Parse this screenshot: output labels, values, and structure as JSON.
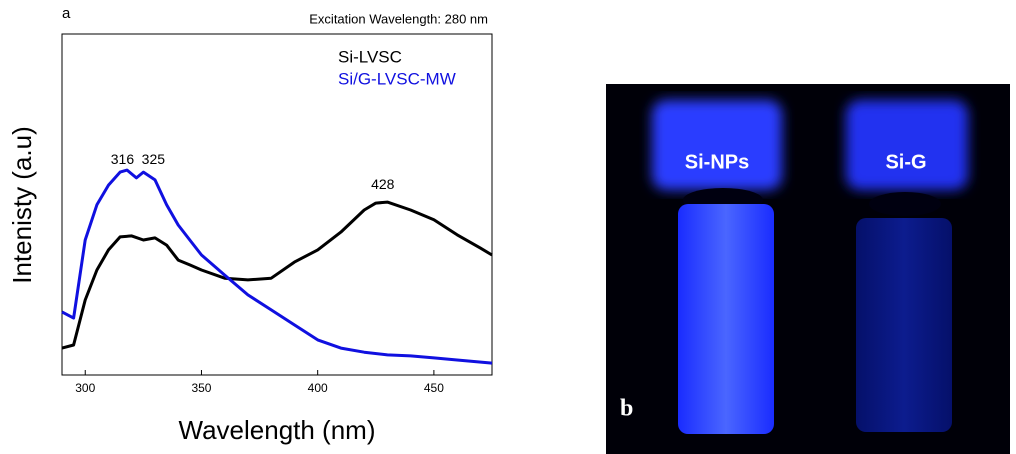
{
  "chart_data": {
    "type": "line",
    "panel_label": "a",
    "subtitle": "Excitation Wavelength: 280 nm",
    "x_label": "Wavelength (nm)",
    "y_label": "Intenisty (a.u)",
    "xlim": [
      290,
      475
    ],
    "xticks": [
      300,
      350,
      400,
      450
    ],
    "ylim": [
      0,
      100
    ],
    "series": [
      {
        "name": "Si-LVSC",
        "color": "#000000",
        "x": [
          290,
          295,
          300,
          305,
          310,
          315,
          320,
          325,
          330,
          335,
          340,
          345,
          350,
          360,
          370,
          380,
          390,
          400,
          410,
          420,
          425,
          430,
          440,
          450,
          460,
          470,
          475
        ],
        "values": [
          7.9,
          8.8,
          22,
          30.8,
          36.7,
          40.5,
          40.8,
          39.6,
          40.2,
          38.1,
          33.7,
          32.3,
          30.8,
          28.4,
          27.9,
          28.4,
          33.1,
          36.7,
          41.9,
          48.4,
          50.4,
          50.7,
          48.4,
          45.5,
          41.1,
          37.2,
          35.2
        ]
      },
      {
        "name": "Si/G-LVSC-MW",
        "color": "#1010e0",
        "x": [
          290,
          295,
          300,
          305,
          310,
          315,
          318,
          322,
          325,
          330,
          335,
          340,
          345,
          350,
          360,
          370,
          380,
          390,
          400,
          410,
          420,
          430,
          440,
          450,
          460,
          475
        ],
        "values": [
          18.5,
          16.7,
          39.6,
          49.9,
          55.7,
          59.5,
          60.1,
          57.8,
          59.5,
          57.2,
          49.9,
          44,
          39.6,
          35.2,
          29.3,
          23.5,
          19.1,
          14.7,
          10.3,
          7.9,
          6.7,
          5.9,
          5.6,
          5,
          4.4,
          3.5
        ]
      }
    ],
    "annotations": [
      {
        "x": 316,
        "y": 63
      },
      {
        "x": 325,
        "y": 63
      },
      {
        "x": 428,
        "y": 55.7
      }
    ]
  },
  "photo": {
    "panel_label": "b",
    "labels": [
      "Si-NPs",
      "Si-G"
    ]
  }
}
